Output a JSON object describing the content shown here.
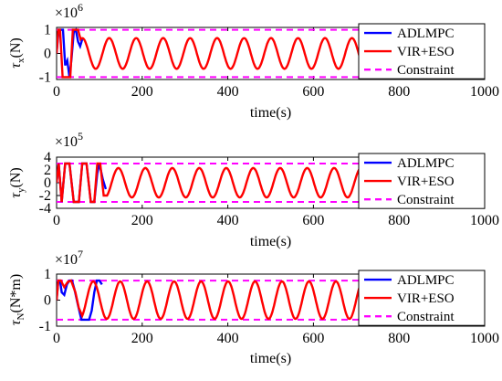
{
  "colors": {
    "adlmpc": "#0000ff",
    "virpeso": "#ff0000",
    "constraint": "#ff00ff"
  },
  "chart_data": [
    {
      "type": "line",
      "ylabel_symbol": "τ",
      "ylabel_sub": "x",
      "ylabel_unit": "(N)",
      "xlabel": "time(s)",
      "multiplier": "×10",
      "multiplier_exp": "6",
      "xlim": [
        0,
        1000
      ],
      "ylim": [
        -1.1,
        1.1
      ],
      "xticks": [
        "0",
        "200",
        "400",
        "600",
        "800",
        "1000"
      ],
      "xtick_values": [
        0,
        200,
        400,
        600,
        800,
        1000
      ],
      "yticks": [
        "-1",
        "0",
        "1"
      ],
      "ytick_values": [
        -1,
        0,
        1
      ],
      "legend": [
        "ADLMPC",
        "VIR+ESO",
        "Constraint"
      ],
      "legend_position": "top-right",
      "constraint": [
        -1,
        1
      ],
      "series": [
        {
          "name": "ADLMPC",
          "x": [
            0,
            5,
            10,
            15,
            20,
            25,
            30,
            35,
            40,
            45,
            50,
            55,
            60
          ],
          "y": [
            0,
            1,
            1,
            1,
            -0.5,
            -0.3,
            -1,
            -0.2,
            0.9,
            1,
            0.5,
            0.3,
            0.6
          ]
        },
        {
          "name": "VIR+ESO",
          "shape": "sine",
          "x_start": 0,
          "period": 63,
          "amplitude": 0.65,
          "init": {
            "x": [
              0,
              4,
              8,
              14,
              20,
              26,
              32,
              38,
              44,
              50,
              56
            ],
            "y": [
              0,
              1,
              1,
              -1,
              -1,
              -1,
              -1,
              1,
              1,
              1,
              0.6
            ]
          }
        }
      ]
    },
    {
      "type": "line",
      "ylabel_symbol": "τ",
      "ylabel_sub": "y",
      "ylabel_unit": "(N)",
      "xlabel": "time(s)",
      "multiplier": "×10",
      "multiplier_exp": "5",
      "xlim": [
        0,
        1000
      ],
      "ylim": [
        -4,
        4
      ],
      "xticks": [
        "0",
        "200",
        "400",
        "600",
        "800",
        "1000"
      ],
      "xtick_values": [
        0,
        200,
        400,
        600,
        800,
        1000
      ],
      "yticks": [
        "-4",
        "-2",
        "0",
        "2",
        "4"
      ],
      "ytick_values": [
        -4,
        -2,
        0,
        2,
        4
      ],
      "legend": [
        "ADLMPC",
        "VIR+ESO",
        "Constraint"
      ],
      "legend_position": "top-right",
      "constraint": [
        -3,
        3
      ],
      "series": [
        {
          "name": "ADLMPC",
          "x": [
            0,
            5,
            12,
            20,
            30,
            40,
            52,
            60,
            70,
            80,
            88,
            95,
            100,
            108,
            115
          ],
          "y": [
            0,
            3,
            -3,
            3,
            3,
            -3,
            -3,
            3,
            3,
            -3,
            -3,
            1.5,
            3,
            0.5,
            -1
          ]
        },
        {
          "name": "VIR+ESO",
          "shape": "sine",
          "x_start": 0,
          "period": 63,
          "amplitude": 2.3,
          "init": {
            "x": [
              0,
              5,
              12,
              20,
              30,
              40,
              52,
              60,
              70,
              80,
              88,
              95,
              102,
              110,
              118
            ],
            "y": [
              0,
              3,
              -3,
              3,
              3,
              -3,
              -3,
              3,
              3,
              -3,
              -3,
              3,
              3,
              -2,
              -2
            ]
          }
        }
      ]
    },
    {
      "type": "line",
      "ylabel_symbol": "τ",
      "ylabel_sub": "N",
      "ylabel_unit": "(N*m)",
      "xlabel": "time(s)",
      "multiplier": "×10",
      "multiplier_exp": "7",
      "xlim": [
        0,
        1000
      ],
      "ylim": [
        -1.0,
        1.0
      ],
      "xticks": [
        "0",
        "200",
        "400",
        "600",
        "800",
        "1000"
      ],
      "xtick_values": [
        0,
        200,
        400,
        600,
        800,
        1000
      ],
      "yticks": [
        "-1",
        "0",
        "1"
      ],
      "ytick_values": [
        -1,
        0,
        1
      ],
      "legend": [
        "ADLMPC",
        "VIR+ESO",
        "Constraint"
      ],
      "legend_position": "top-right",
      "constraint": [
        -0.75,
        0.75
      ],
      "series": [
        {
          "name": "ADLMPC",
          "x": [
            0,
            4,
            8,
            12,
            18,
            24,
            30,
            36,
            42,
            50,
            58,
            64,
            70,
            76,
            82,
            88,
            94,
            100,
            106
          ],
          "y": [
            0,
            0.75,
            0.75,
            0.3,
            0.2,
            0.6,
            0.75,
            0.75,
            0.4,
            -0.2,
            -0.75,
            -0.75,
            -0.75,
            -0.75,
            -0.4,
            0.3,
            0.75,
            0.75,
            0.6
          ]
        },
        {
          "name": "VIR+ESO",
          "shape": "sine",
          "x_start": 0,
          "period": 63,
          "amplitude": 0.72,
          "init": {
            "x": [
              0,
              4,
              10,
              18,
              26,
              34,
              44,
              52,
              60
            ],
            "y": [
              0,
              0.75,
              0.75,
              0.5,
              0.7,
              0.75,
              0.3,
              -0.3,
              -0.6
            ]
          }
        }
      ]
    }
  ]
}
